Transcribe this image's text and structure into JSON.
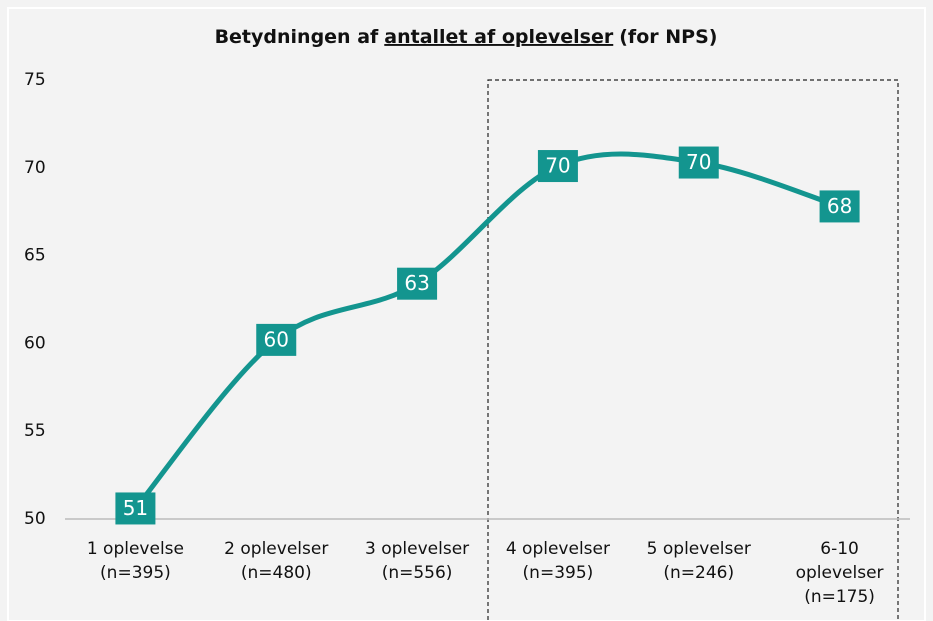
{
  "chart_data": {
    "type": "line",
    "title": [
      "Betydningen af",
      "antallet af oplevelser",
      "(for NPS)"
    ],
    "title_underline": 1,
    "categories": [
      [
        "1 oplevelse",
        "(n=395)"
      ],
      [
        "2 oplevelser",
        "(n=480)"
      ],
      [
        "3 oplevelser",
        "(n=556)"
      ],
      [
        "4 oplevelser",
        "(n=395)"
      ],
      [
        "5 oplevelser",
        "(n=246)"
      ],
      [
        "6-10",
        "oplevelser",
        "(n=175)"
      ]
    ],
    "values": [
      50.6,
      60.2,
      63.4,
      70.1,
      70.3,
      67.8
    ],
    "value_labels": [
      "51",
      "60",
      "63",
      "70",
      "70",
      "68"
    ],
    "color": "#13958f",
    "ylim": [
      50,
      75
    ],
    "yticks": [
      50,
      55,
      60,
      65,
      70,
      75
    ],
    "grid": false,
    "smooth": true
  }
}
